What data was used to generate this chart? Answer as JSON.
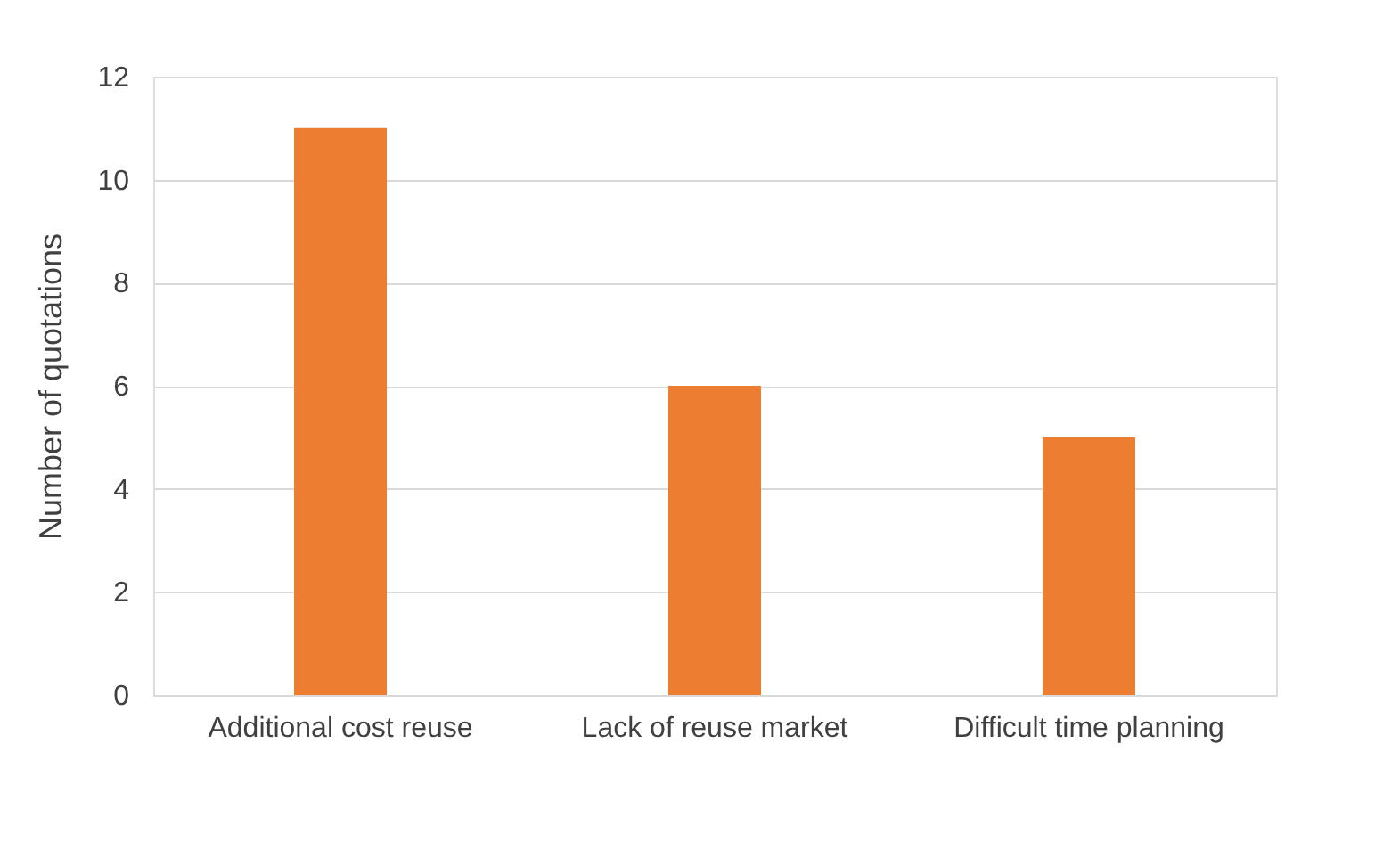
{
  "chart_data": {
    "type": "bar",
    "ylabel": "Number of quotations",
    "categories": [
      "Additional cost reuse",
      "Lack of reuse market",
      "Difficult time planning"
    ],
    "values": [
      11,
      6,
      5
    ],
    "color": "#ed7d31",
    "ylim": [
      0,
      12
    ],
    "yticks": [
      0,
      2,
      4,
      6,
      8,
      10,
      12
    ],
    "grid": "y"
  }
}
